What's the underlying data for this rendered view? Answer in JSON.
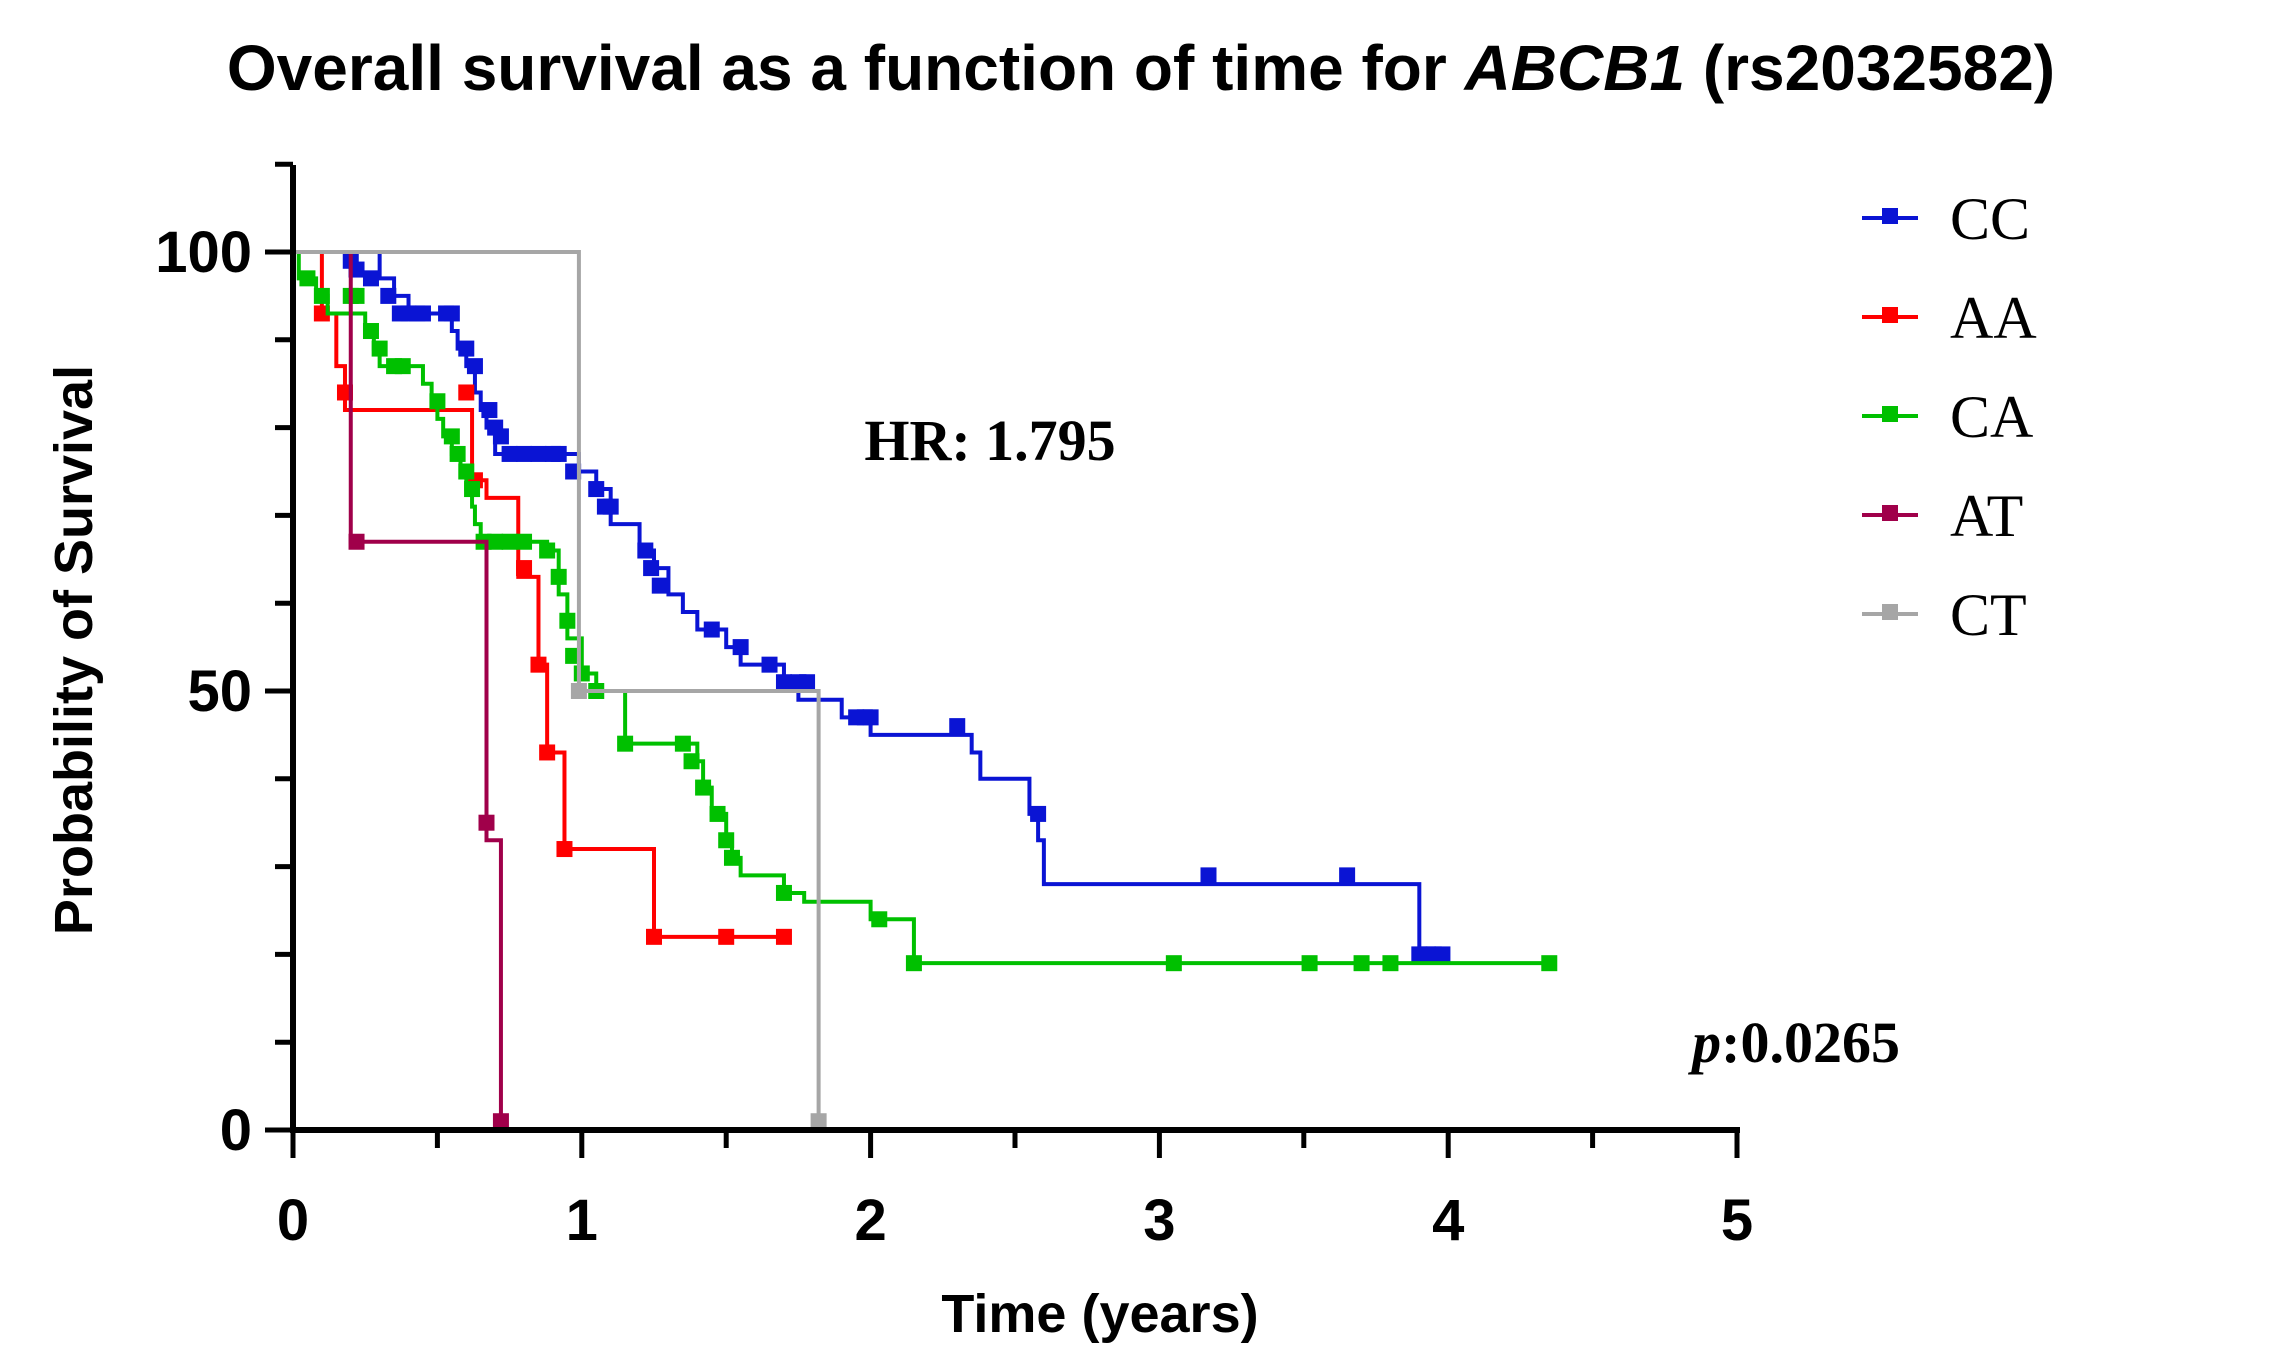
{
  "chart_data": {
    "type": "line",
    "title_prefix": "Overall survival as a function of time for ",
    "title_italic": "ABCB1",
    "title_suffix": " (rs2032582)",
    "xlabel": "Time (years)",
    "ylabel": "Probability of Survival",
    "xlim": [
      0,
      5
    ],
    "ylim": [
      0,
      110
    ],
    "xticks": [
      "0",
      "1",
      "2",
      "3",
      "4",
      "5"
    ],
    "yticks": [
      "0",
      "50",
      "100"
    ],
    "legend_position": "top-right",
    "annotations": {
      "hr": "HR: 1.795",
      "p_label": "p",
      "p_value": ":0.0265"
    },
    "series": [
      {
        "name": "CC",
        "color": "#0a14d4",
        "steps": [
          [
            0,
            100
          ],
          [
            0.3,
            97
          ],
          [
            0.35,
            95
          ],
          [
            0.4,
            93
          ],
          [
            0.55,
            91
          ],
          [
            0.57,
            89
          ],
          [
            0.6,
            87
          ],
          [
            0.63,
            84
          ],
          [
            0.65,
            82
          ],
          [
            0.67,
            80
          ],
          [
            0.7,
            77
          ],
          [
            0.99,
            75
          ],
          [
            1.05,
            73
          ],
          [
            1.1,
            69
          ],
          [
            1.2,
            66
          ],
          [
            1.25,
            64
          ],
          [
            1.3,
            61
          ],
          [
            1.35,
            59
          ],
          [
            1.4,
            57
          ],
          [
            1.5,
            55
          ],
          [
            1.55,
            53
          ],
          [
            1.7,
            51
          ],
          [
            1.75,
            49
          ],
          [
            1.9,
            47
          ],
          [
            2.0,
            45
          ],
          [
            2.35,
            43
          ],
          [
            2.38,
            40
          ],
          [
            2.55,
            36
          ],
          [
            2.58,
            33
          ],
          [
            2.6,
            28
          ],
          [
            3.9,
            20
          ],
          [
            4.0,
            20
          ]
        ],
        "censored": [
          [
            0.2,
            99
          ],
          [
            0.22,
            98
          ],
          [
            0.27,
            97
          ],
          [
            0.33,
            95
          ],
          [
            0.37,
            93
          ],
          [
            0.4,
            93
          ],
          [
            0.43,
            93
          ],
          [
            0.45,
            93
          ],
          [
            0.53,
            93
          ],
          [
            0.55,
            93
          ],
          [
            0.6,
            89
          ],
          [
            0.63,
            87
          ],
          [
            0.68,
            82
          ],
          [
            0.7,
            80
          ],
          [
            0.72,
            79
          ],
          [
            0.75,
            77
          ],
          [
            0.8,
            77
          ],
          [
            0.85,
            77
          ],
          [
            0.9,
            77
          ],
          [
            0.92,
            77
          ],
          [
            0.97,
            75
          ],
          [
            1.05,
            73
          ],
          [
            1.08,
            71
          ],
          [
            1.1,
            71
          ],
          [
            1.22,
            66
          ],
          [
            1.24,
            64
          ],
          [
            1.27,
            62
          ],
          [
            1.45,
            57
          ],
          [
            1.55,
            55
          ],
          [
            1.65,
            53
          ],
          [
            1.7,
            51
          ],
          [
            1.75,
            51
          ],
          [
            1.78,
            51
          ],
          [
            1.95,
            47
          ],
          [
            1.98,
            47
          ],
          [
            2.0,
            47
          ],
          [
            2.3,
            46
          ],
          [
            2.58,
            36
          ],
          [
            3.17,
            29
          ],
          [
            3.65,
            29
          ],
          [
            3.9,
            20
          ],
          [
            3.93,
            20
          ],
          [
            3.95,
            20
          ],
          [
            3.98,
            20
          ]
        ]
      },
      {
        "name": "AA",
        "color": "#ff0000",
        "steps": [
          [
            0,
            100
          ],
          [
            0.1,
            93
          ],
          [
            0.15,
            87
          ],
          [
            0.18,
            82
          ],
          [
            0.62,
            74
          ],
          [
            0.67,
            72
          ],
          [
            0.78,
            63
          ],
          [
            0.85,
            53
          ],
          [
            0.88,
            43
          ],
          [
            0.94,
            32
          ],
          [
            1.25,
            22
          ],
          [
            1.7,
            22
          ]
        ],
        "censored": [
          [
            0.1,
            93
          ],
          [
            0.18,
            84
          ],
          [
            0.6,
            84
          ],
          [
            0.63,
            74
          ],
          [
            0.8,
            64
          ],
          [
            0.85,
            53
          ],
          [
            0.88,
            43
          ],
          [
            0.94,
            32
          ],
          [
            1.25,
            22
          ],
          [
            1.5,
            22
          ],
          [
            1.7,
            22
          ]
        ]
      },
      {
        "name": "CA",
        "color": "#00c000",
        "steps": [
          [
            0,
            100
          ],
          [
            0.02,
            97
          ],
          [
            0.08,
            95
          ],
          [
            0.12,
            93
          ],
          [
            0.25,
            91
          ],
          [
            0.28,
            89
          ],
          [
            0.3,
            87
          ],
          [
            0.45,
            85
          ],
          [
            0.48,
            83
          ],
          [
            0.5,
            81
          ],
          [
            0.52,
            79
          ],
          [
            0.55,
            77
          ],
          [
            0.58,
            75
          ],
          [
            0.6,
            73
          ],
          [
            0.62,
            71
          ],
          [
            0.63,
            69
          ],
          [
            0.65,
            67
          ],
          [
            0.88,
            66
          ],
          [
            0.92,
            61
          ],
          [
            0.95,
            56
          ],
          [
            1.0,
            52
          ],
          [
            1.05,
            50
          ],
          [
            1.15,
            44
          ],
          [
            1.4,
            42
          ],
          [
            1.42,
            39
          ],
          [
            1.45,
            36
          ],
          [
            1.5,
            33
          ],
          [
            1.52,
            31
          ],
          [
            1.55,
            29
          ],
          [
            1.7,
            27
          ],
          [
            1.77,
            26
          ],
          [
            2.0,
            24
          ],
          [
            2.15,
            19
          ],
          [
            4.35,
            19
          ]
        ],
        "censored": [
          [
            0.05,
            97
          ],
          [
            0.1,
            95
          ],
          [
            0.2,
            95
          ],
          [
            0.22,
            95
          ],
          [
            0.27,
            91
          ],
          [
            0.3,
            89
          ],
          [
            0.35,
            87
          ],
          [
            0.38,
            87
          ],
          [
            0.5,
            83
          ],
          [
            0.55,
            79
          ],
          [
            0.57,
            77
          ],
          [
            0.6,
            75
          ],
          [
            0.62,
            73
          ],
          [
            0.66,
            67
          ],
          [
            0.7,
            67
          ],
          [
            0.75,
            67
          ],
          [
            0.8,
            67
          ],
          [
            0.88,
            66
          ],
          [
            0.92,
            63
          ],
          [
            0.95,
            58
          ],
          [
            0.97,
            54
          ],
          [
            1.0,
            52
          ],
          [
            1.05,
            50
          ],
          [
            1.15,
            44
          ],
          [
            1.35,
            44
          ],
          [
            1.38,
            42
          ],
          [
            1.42,
            39
          ],
          [
            1.47,
            36
          ],
          [
            1.5,
            33
          ],
          [
            1.52,
            31
          ],
          [
            1.7,
            27
          ],
          [
            2.03,
            24
          ],
          [
            2.15,
            19
          ],
          [
            3.05,
            19
          ],
          [
            3.52,
            19
          ],
          [
            3.7,
            19
          ],
          [
            3.8,
            19
          ],
          [
            4.35,
            19
          ]
        ]
      },
      {
        "name": "AT",
        "color": "#a0004a",
        "steps": [
          [
            0,
            100
          ],
          [
            0.2,
            67
          ],
          [
            0.67,
            33
          ],
          [
            0.72,
            0
          ]
        ],
        "censored": [
          [
            0.22,
            67
          ],
          [
            0.67,
            35
          ],
          [
            0.72,
            1
          ]
        ]
      },
      {
        "name": "CT",
        "color": "#a6a6a6",
        "steps": [
          [
            0,
            100
          ],
          [
            0.99,
            50
          ],
          [
            1.82,
            0
          ]
        ],
        "censored": [
          [
            0.99,
            50
          ],
          [
            1.82,
            1
          ]
        ]
      }
    ]
  }
}
